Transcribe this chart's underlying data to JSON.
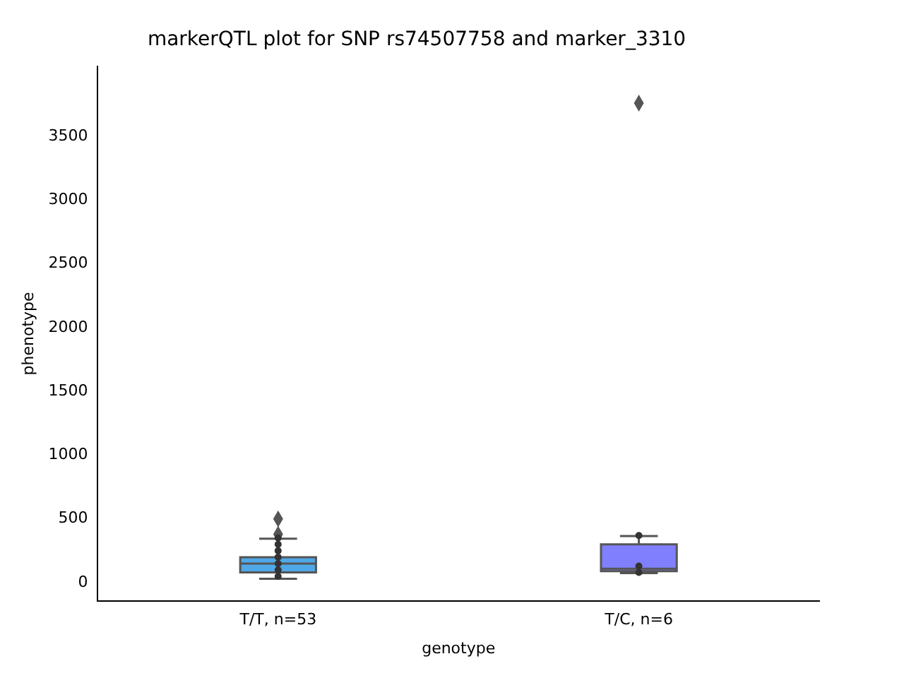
{
  "chart_data": {
    "type": "box",
    "title": "markerQTL plot for SNP rs74507758 and marker_3310",
    "xlabel": "genotype",
    "ylabel": "phenotype",
    "categories": [
      "T/T, n=53",
      "T/C, n=6"
    ],
    "colors": [
      "#4fa8e8",
      "#8080ff"
    ],
    "boxes": [
      {
        "low": 30,
        "q1": 80,
        "median": 150,
        "q3": 200,
        "high": 345,
        "outliers": [
          500,
          380
        ]
      },
      {
        "low": 75,
        "q1": 90,
        "median": 110,
        "q3": 300,
        "high": 365,
        "outliers": [
          3760
        ]
      }
    ],
    "series": [
      {
        "type": "scatter",
        "color": "#333333",
        "x": [
          "T/T, n=53",
          "T/T, n=53",
          "T/T, n=53",
          "T/T, n=53",
          "T/T, n=53",
          "T/T, n=53",
          "T/T, n=53",
          "T/C, n=6",
          "T/C, n=6",
          "T/C, n=6"
        ],
        "values": [
          350,
          300,
          250,
          200,
          150,
          100,
          50,
          370,
          130,
          80
        ]
      }
    ],
    "ylim": [
      -145,
      4050
    ],
    "yticks": [
      0,
      500,
      1000,
      1500,
      2000,
      2500,
      3000,
      3500
    ],
    "marker": "circle",
    "grid": false,
    "legend": false
  }
}
